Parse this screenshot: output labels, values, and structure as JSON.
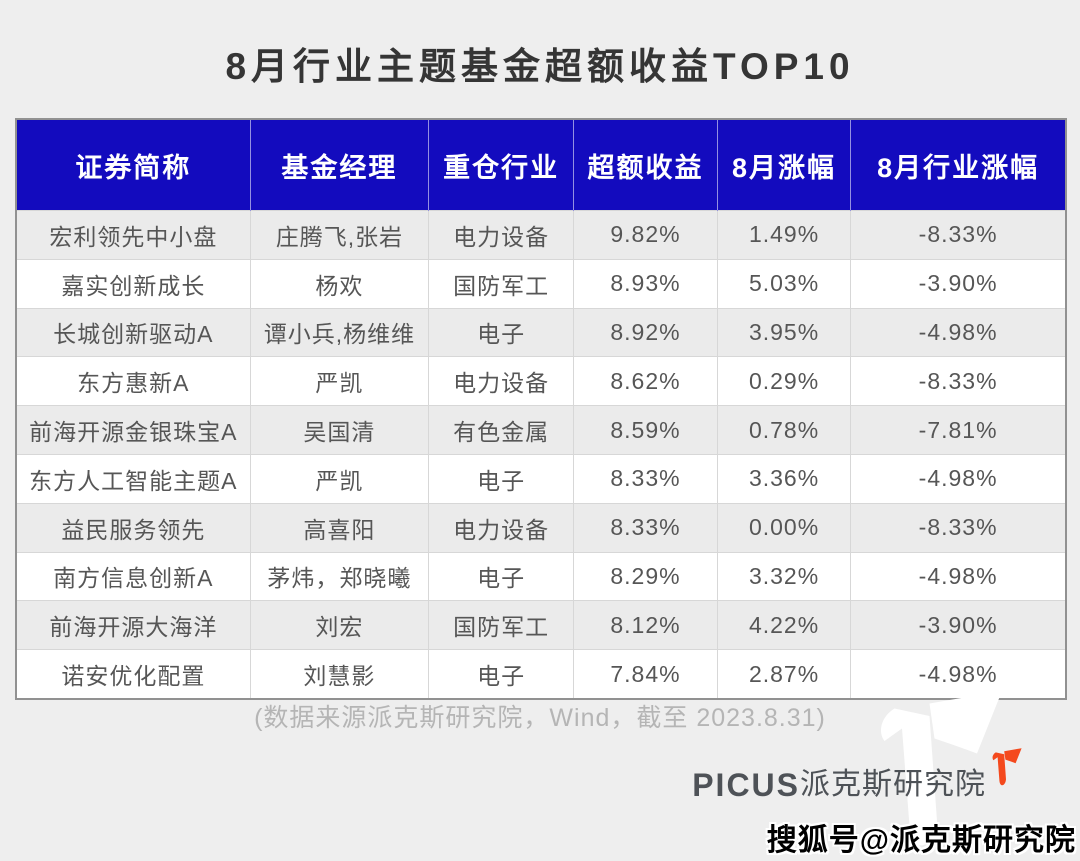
{
  "title": "8月行业主题基金超额收益TOP10",
  "table": {
    "header_bg": "#130bbe",
    "columns": [
      "证券简称",
      "基金经理",
      "重仓行业",
      "超额收益",
      "8月涨幅",
      "8月行业涨幅"
    ],
    "rows": [
      [
        "宏利领先中小盘",
        "庄腾飞,张岩",
        "电力设备",
        "9.82%",
        "1.49%",
        "-8.33%"
      ],
      [
        "嘉实创新成长",
        "杨欢",
        "国防军工",
        "8.93%",
        "5.03%",
        "-3.90%"
      ],
      [
        "长城创新驱动A",
        "谭小兵,杨维维",
        "电子",
        "8.92%",
        "3.95%",
        "-4.98%"
      ],
      [
        "东方惠新A",
        "严凯",
        "电力设备",
        "8.62%",
        "0.29%",
        "-8.33%"
      ],
      [
        "前海开源金银珠宝A",
        "吴国清",
        "有色金属",
        "8.59%",
        "0.78%",
        "-7.81%"
      ],
      [
        "东方人工智能主题A",
        "严凯",
        "电子",
        "8.33%",
        "3.36%",
        "-4.98%"
      ],
      [
        "益民服务领先",
        "高喜阳",
        "电力设备",
        "8.33%",
        "0.00%",
        "-8.33%"
      ],
      [
        "南方信息创新A",
        "茅炜，郑晓曦",
        "电子",
        "8.29%",
        "3.32%",
        "-4.98%"
      ],
      [
        "前海开源大海洋",
        "刘宏",
        "国防军工",
        "8.12%",
        "4.22%",
        "-3.90%"
      ],
      [
        "诺安优化配置",
        "刘慧影",
        "电子",
        "7.84%",
        "2.87%",
        "-4.98%"
      ]
    ]
  },
  "footer": {
    "source_note": "(数据来源派克斯研究院，Wind，截至 2023.8.31)"
  },
  "branding": {
    "logo_text_en": "PICUS",
    "logo_text_cn": "派克斯研究院",
    "logo_color": "#f4491d",
    "watermark_glyph": "picus-p-mark",
    "sohu_watermark": "搜狐号@派克斯研究院"
  },
  "chart_data": {
    "type": "table",
    "title": "8月行业主题基金超额收益TOP10",
    "columns": [
      "证券简称",
      "基金经理",
      "重仓行业",
      "超额收益",
      "8月涨幅",
      "8月行业涨幅"
    ],
    "rows": [
      [
        "宏利领先中小盘",
        "庄腾飞,张岩",
        "电力设备",
        "9.82%",
        "1.49%",
        "-8.33%"
      ],
      [
        "嘉实创新成长",
        "杨欢",
        "国防军工",
        "8.93%",
        "5.03%",
        "-3.90%"
      ],
      [
        "长城创新驱动A",
        "谭小兵,杨维维",
        "电子",
        "8.92%",
        "3.95%",
        "-4.98%"
      ],
      [
        "东方惠新A",
        "严凯",
        "电力设备",
        "8.62%",
        "0.29%",
        "-8.33%"
      ],
      [
        "前海开源金银珠宝A",
        "吴国清",
        "有色金属",
        "8.59%",
        "0.78%",
        "-7.81%"
      ],
      [
        "东方人工智能主题A",
        "严凯",
        "电子",
        "8.33%",
        "3.36%",
        "-4.98%"
      ],
      [
        "益民服务领先",
        "高喜阳",
        "电力设备",
        "8.33%",
        "0.00%",
        "-8.33%"
      ],
      [
        "南方信息创新A",
        "茅炜，郑晓曦",
        "电子",
        "8.29%",
        "3.32%",
        "-4.98%"
      ],
      [
        "前海开源大海洋",
        "刘宏",
        "国防军工",
        "8.12%",
        "4.22%",
        "-3.90%"
      ],
      [
        "诺安优化配置",
        "刘慧影",
        "电子",
        "7.84%",
        "2.87%",
        "-4.98%"
      ]
    ],
    "source": "数据来源派克斯研究院，Wind，截至 2023.8.31"
  }
}
